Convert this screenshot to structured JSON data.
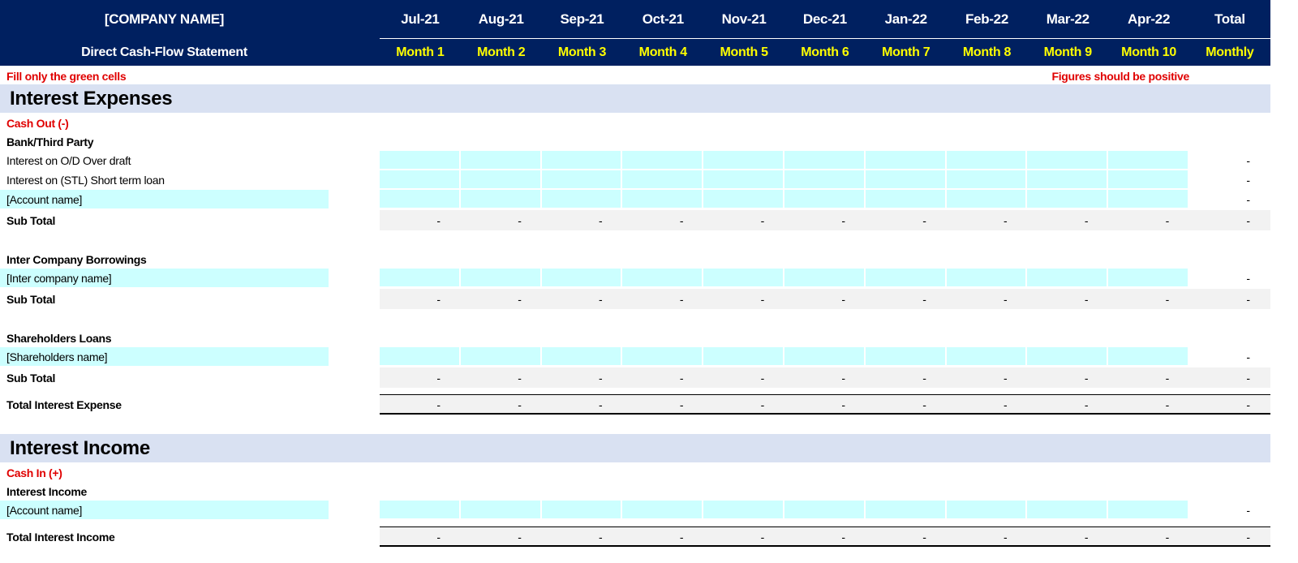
{
  "header": {
    "company": "[COMPANY NAME]",
    "subtitle": "Direct Cash-Flow Statement",
    "months": [
      "Jul-21",
      "Aug-21",
      "Sep-21",
      "Oct-21",
      "Nov-21",
      "Dec-21",
      "Jan-22",
      "Feb-22",
      "Mar-22",
      "Apr-22",
      "Total"
    ],
    "periods": [
      "Month 1",
      "Month 2",
      "Month 3",
      "Month 4",
      "Month 5",
      "Month 6",
      "Month 7",
      "Month 8",
      "Month 9",
      "Month 10",
      "Monthly"
    ]
  },
  "notes": {
    "left": "Fill only the green cells",
    "right": "Figures should be positive"
  },
  "sections": [
    {
      "title": "Interest Expenses",
      "cash_label": "Cash Out (-)",
      "groups": [
        {
          "heading": "Bank/Third Party",
          "rows": [
            {
              "label": "Interest on O/D Over draft",
              "total": "-"
            },
            {
              "label": "Interest on (STL) Short term loan",
              "total": "-"
            },
            {
              "label": "[Account name]",
              "total": "-"
            }
          ],
          "subtotal": {
            "label": "Sub Total",
            "values": [
              "-",
              "-",
              "-",
              "-",
              "-",
              "-",
              "-",
              "-",
              "-",
              "-",
              "-"
            ]
          }
        },
        {
          "heading": "Inter Company Borrowings",
          "rows": [
            {
              "label": "[Inter company name]",
              "total": "-"
            }
          ],
          "subtotal": {
            "label": "Sub Total",
            "values": [
              "-",
              "-",
              "-",
              "-",
              "-",
              "-",
              "-",
              "-",
              "-",
              "-",
              "-"
            ]
          }
        },
        {
          "heading": "Shareholders Loans",
          "rows": [
            {
              "label": "[Shareholders name]",
              "total": "-"
            }
          ],
          "subtotal": {
            "label": "Sub Total",
            "values": [
              "-",
              "-",
              "-",
              "-",
              "-",
              "-",
              "-",
              "-",
              "-",
              "-",
              "-"
            ]
          }
        }
      ],
      "total": {
        "label": "Total Interest Expense",
        "values": [
          "-",
          "-",
          "-",
          "-",
          "-",
          "-",
          "-",
          "-",
          "-",
          "-",
          "-"
        ]
      }
    },
    {
      "title": "Interest Income",
      "cash_label": "Cash In (+)",
      "groups": [
        {
          "heading": "Interest Income",
          "rows": [
            {
              "label": "[Account name]",
              "total": "-"
            }
          ]
        }
      ],
      "total": {
        "label": "Total Interest Income",
        "values": [
          "-",
          "-",
          "-",
          "-",
          "-",
          "-",
          "-",
          "-",
          "-",
          "-",
          "-"
        ]
      }
    }
  ]
}
